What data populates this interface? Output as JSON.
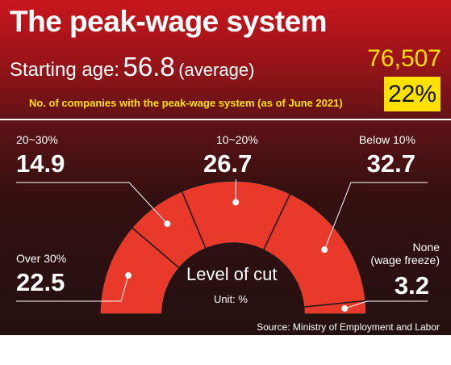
{
  "header": {
    "title": "The peak-wage system",
    "age_label": "Starting age:",
    "age_value": "56.8",
    "age_note": "(average)",
    "companies_count": "76,507",
    "companies_share": "22%",
    "companies_label": "No. of companies with the peak-wage system (as of June 2021)"
  },
  "chart_data": {
    "type": "pie",
    "variant": "semicircle-donut",
    "title": "Level of cut",
    "unit_label": "Unit: %",
    "categories": [
      "Over 30%",
      "20~30%",
      "10~20%",
      "Below 10%",
      "None (wage freeze)"
    ],
    "category_lines": [
      [
        "Over 30%"
      ],
      [
        "20~30%"
      ],
      [
        "10~20%"
      ],
      [
        "Below 10%"
      ],
      [
        "None",
        "(wage freeze)"
      ]
    ],
    "values": [
      22.5,
      14.9,
      26.7,
      32.7,
      3.2
    ],
    "value_labels": [
      "22.5",
      "14.9",
      "26.7",
      "32.7",
      "3.2"
    ],
    "slice_color": "#e8392b",
    "separator_color": "#1a1a1a",
    "leader_color": "#ffffff"
  },
  "source": "Source: Ministry of Employment and Labor"
}
